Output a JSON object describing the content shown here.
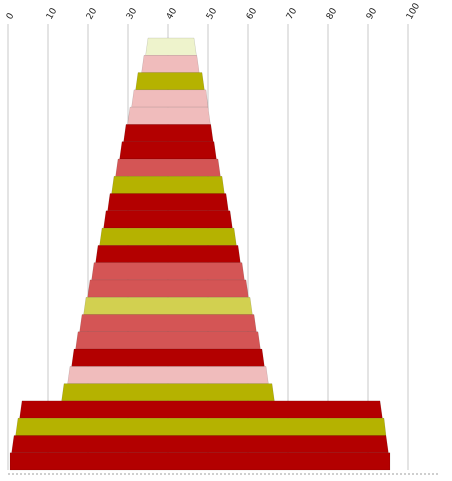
{
  "chart_data": {
    "type": "bar",
    "orientation": "horizontal-centered",
    "grid": true,
    "xlim": [
      0,
      100
    ],
    "x_ticks": [
      "0",
      "10",
      "20",
      "30",
      "40",
      "50",
      "60",
      "70",
      "80",
      "90",
      "100"
    ],
    "colors": {
      "dark_red": "#b30000",
      "red": "#d45555",
      "olive": "#b5b200",
      "yellow": "#d2d050",
      "pink": "#f0bcbc",
      "cream": "#eef3cc"
    },
    "bars": [
      {
        "left": 35.0,
        "right": 46.5,
        "color": "cream"
      },
      {
        "left": 34.0,
        "right": 47.2,
        "color": "pink"
      },
      {
        "left": 32.5,
        "right": 48.5,
        "color": "olive"
      },
      {
        "left": 31.5,
        "right": 49.5,
        "color": "pink"
      },
      {
        "left": 30.5,
        "right": 50.0,
        "color": "pink"
      },
      {
        "left": 29.5,
        "right": 50.7,
        "color": "dark_red"
      },
      {
        "left": 28.5,
        "right": 51.5,
        "color": "dark_red"
      },
      {
        "left": 27.5,
        "right": 52.5,
        "color": "red"
      },
      {
        "left": 26.5,
        "right": 53.5,
        "color": "olive"
      },
      {
        "left": 25.5,
        "right": 54.5,
        "color": "dark_red"
      },
      {
        "left": 24.5,
        "right": 55.5,
        "color": "dark_red"
      },
      {
        "left": 23.5,
        "right": 56.5,
        "color": "olive"
      },
      {
        "left": 22.5,
        "right": 57.5,
        "color": "dark_red"
      },
      {
        "left": 21.5,
        "right": 58.5,
        "color": "red"
      },
      {
        "left": 20.5,
        "right": 59.5,
        "color": "red"
      },
      {
        "left": 19.5,
        "right": 60.5,
        "color": "yellow"
      },
      {
        "left": 18.5,
        "right": 61.5,
        "color": "red"
      },
      {
        "left": 17.5,
        "right": 62.5,
        "color": "red"
      },
      {
        "left": 16.5,
        "right": 63.5,
        "color": "dark_red"
      },
      {
        "left": 15.5,
        "right": 64.5,
        "color": "pink"
      },
      {
        "left": 14.0,
        "right": 66.0,
        "color": "olive"
      },
      {
        "left": 3.5,
        "right": 93.0,
        "color": "dark_red"
      },
      {
        "left": 2.5,
        "right": 94.0,
        "color": "olive"
      },
      {
        "left": 1.5,
        "right": 94.5,
        "color": "dark_red"
      },
      {
        "left": 0.5,
        "right": 95.5,
        "color": "dark_red"
      }
    ]
  }
}
